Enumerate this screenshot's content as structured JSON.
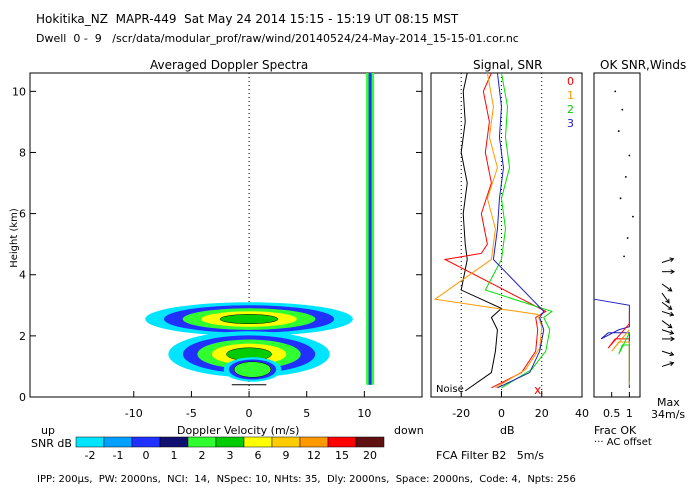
{
  "header": {
    "line1": "Hokitika_NZ  MAPR-449  Sat May 24 2014 15:15 - 15:19 UT 08:15 MST",
    "line2": "Dwell  0 -  9   /scr/data/modular_prof/raw/wind/20140524/24-May-2014_15-15-01.cor.nc"
  },
  "footer": {
    "params": "IPP: 200µs,  PW: 2000ns,  NCI:  14,  NSpec: 10, NHts: 35,  Dly: 2000ns,  Space: 2000ns,  Code: 4,  Npts: 256",
    "filter": "FCA Filter B2   5m/s"
  },
  "colors": {
    "cyan": "#00e5ff",
    "blue": "#2030ff",
    "navy": "#101070",
    "green": "#30ff30",
    "yellow": "#ffff00",
    "orange": "#ff9900",
    "red": "#ff0000",
    "magenta": "#c000c0"
  },
  "chart_data": [
    {
      "id": "spectra",
      "type": "heatmap",
      "title": "Averaged Doppler Spectra",
      "xlabel": "Doppler Velocity (m/s)",
      "ylabel": "Height (km)",
      "xlim": [
        -19,
        15
      ],
      "ylim": [
        0,
        10.6
      ],
      "xticks": [
        -10,
        -5,
        0,
        5,
        10
      ],
      "yticks": [
        0,
        2,
        4,
        6,
        8,
        10
      ],
      "left_label": "up",
      "right_label": "down",
      "colorbar": {
        "label": "SNR dB",
        "ticks": [
          "-2",
          "-1",
          "0",
          "1",
          "2",
          "3",
          "6",
          "9",
          "12",
          "15",
          "20"
        ],
        "colors": [
          "#00e5ff",
          "#00a0ff",
          "#2030ff",
          "#101070",
          "#30ff30",
          "#00cc00",
          "#ffff00",
          "#ffcc00",
          "#ff9900",
          "#ff0000",
          "#601010",
          "#300030",
          "#800080"
        ]
      },
      "blobs": [
        {
          "x": 0,
          "y": 2.55,
          "rx": 9,
          "ry": 0.55,
          "levels": 5
        },
        {
          "x": 0,
          "y": 1.4,
          "rx": 7,
          "ry": 0.75,
          "levels": 5
        },
        {
          "x": 0.3,
          "y": 0.9,
          "rx": 2.5,
          "ry": 0.4,
          "levels": 3
        }
      ],
      "noise_strip": {
        "x": 10.5,
        "from": 0.4,
        "to": 10.6
      }
    },
    {
      "id": "signal",
      "type": "line",
      "title": "Signal, SNR",
      "xlabel": "dB",
      "xlim": [
        -35,
        40
      ],
      "ylim": [
        0,
        10.6
      ],
      "xticks": [
        -20,
        0,
        20,
        40
      ],
      "noise_label": "Noise",
      "legend": [
        "0",
        "1",
        "2",
        "3"
      ],
      "legend_colors": [
        "#ff0000",
        "#ff9900",
        "#00e000",
        "#2020c0"
      ],
      "series": [
        {
          "name": "signal",
          "color": "#000000",
          "points": [
            [
              -18,
              0.2
            ],
            [
              -5,
              0.8
            ],
            [
              -3,
              1.5
            ],
            [
              -2,
              2.2
            ],
            [
              -5,
              2.6
            ],
            [
              0,
              2.9
            ],
            [
              -20,
              3.5
            ],
            [
              -17,
              4.5
            ],
            [
              -18,
              5
            ],
            [
              -19,
              6
            ],
            [
              -17,
              7
            ],
            [
              -20,
              8
            ],
            [
              -18,
              9
            ],
            [
              -19,
              10
            ],
            [
              -17,
              10.6
            ]
          ]
        },
        {
          "name": "0",
          "color": "#ff0000",
          "points": [
            [
              -5,
              0.3
            ],
            [
              10,
              0.8
            ],
            [
              17,
              1.5
            ],
            [
              18,
              2.2
            ],
            [
              17,
              2.6
            ],
            [
              22,
              2.8
            ],
            [
              -28,
              4.5
            ],
            [
              -10,
              4.7
            ],
            [
              -7,
              5
            ],
            [
              -10,
              6
            ],
            [
              -5,
              7
            ],
            [
              -8,
              8
            ],
            [
              -6,
              9
            ],
            [
              -9,
              10
            ],
            [
              -5,
              10.6
            ]
          ]
        },
        {
          "name": "1",
          "color": "#ff9900",
          "points": [
            [
              -3,
              0.3
            ],
            [
              12,
              0.9
            ],
            [
              19,
              1.6
            ],
            [
              20,
              2.3
            ],
            [
              18,
              2.7
            ],
            [
              -33,
              3.2
            ],
            [
              -5,
              4.5
            ],
            [
              -3,
              5.5
            ],
            [
              -7,
              6.5
            ],
            [
              -2,
              7.5
            ],
            [
              -6,
              8.5
            ],
            [
              -4,
              9.5
            ],
            [
              -7,
              10.6
            ]
          ]
        },
        {
          "name": "2",
          "color": "#00e000",
          "points": [
            [
              0,
              0.3
            ],
            [
              15,
              0.9
            ],
            [
              22,
              1.5
            ],
            [
              24,
              2.2
            ],
            [
              21,
              2.6
            ],
            [
              25,
              2.8
            ],
            [
              -8,
              3.5
            ],
            [
              0,
              4.5
            ],
            [
              2,
              5.5
            ],
            [
              0,
              6.5
            ],
            [
              4,
              7.5
            ],
            [
              2,
              8.5
            ],
            [
              3,
              9.5
            ],
            [
              0,
              10.6
            ]
          ]
        },
        {
          "name": "3",
          "color": "#2020c0",
          "points": [
            [
              -2,
              0.3
            ],
            [
              14,
              0.8
            ],
            [
              19,
              1.5
            ],
            [
              21,
              2.2
            ],
            [
              19,
              2.6
            ],
            [
              21,
              2.8
            ],
            [
              -4,
              4.5
            ],
            [
              -2,
              5.5
            ],
            [
              -1,
              6.5
            ],
            [
              1,
              7.5
            ],
            [
              -1,
              8.5
            ],
            [
              0,
              9.5
            ],
            [
              -2,
              10.6
            ]
          ]
        }
      ]
    },
    {
      "id": "snr-winds",
      "type": "line",
      "title": "OK SNR,Winds",
      "xlabel": "Frac OK",
      "sub_label": "··· AC offset",
      "xlim": [
        0,
        1.3
      ],
      "ylim": [
        0,
        10.6
      ],
      "xticks": [
        "0.5",
        "1"
      ],
      "xtick_values": [
        0.5,
        1
      ],
      "max_label": "Max",
      "max_speed": "34m/s",
      "frac_ok_series": [
        {
          "color": "#2020c0",
          "points": [
            [
              1,
              0.3
            ],
            [
              1,
              2.1
            ],
            [
              0.4,
              2.1
            ],
            [
              0.2,
              1.9
            ],
            [
              0.7,
              2.2
            ],
            [
              1,
              2.3
            ],
            [
              1,
              3.0
            ],
            [
              0,
              3.2
            ]
          ]
        },
        {
          "color": "#ff0000",
          "points": [
            [
              1,
              0.3
            ],
            [
              1,
              1.9
            ],
            [
              0.6,
              1.9
            ],
            [
              0.4,
              1.6
            ],
            [
              1,
              2.4
            ],
            [
              1,
              2.8
            ]
          ]
        },
        {
          "color": "#ff9900",
          "points": [
            [
              1,
              0.4
            ],
            [
              1,
              1.8
            ],
            [
              0.7,
              1.8
            ],
            [
              0.5,
              1.5
            ],
            [
              1,
              2.2
            ]
          ]
        },
        {
          "color": "#00e000",
          "points": [
            [
              1,
              0.5
            ],
            [
              1,
              1.7
            ],
            [
              0.8,
              1.7
            ],
            [
              0.7,
              1.4
            ],
            [
              1,
              2.1
            ]
          ]
        }
      ],
      "ac_offset_dots": [
        [
          0.6,
          10
        ],
        [
          0.8,
          9.4
        ],
        [
          0.7,
          8.7
        ],
        [
          1.0,
          7.9
        ],
        [
          0.9,
          7.2
        ],
        [
          0.75,
          6.5
        ],
        [
          1.1,
          5.9
        ],
        [
          0.95,
          5.2
        ],
        [
          0.85,
          4.6
        ]
      ],
      "winds": [
        [
          0.2,
          1
        ],
        [
          0.3,
          1.5
        ],
        [
          0.25,
          1.9
        ],
        [
          0.3,
          2.2
        ],
        [
          0.35,
          2.5
        ],
        [
          0.3,
          2.8
        ],
        [
          0.35,
          3.1
        ],
        [
          0.4,
          3.4
        ],
        [
          0.35,
          3.7
        ],
        [
          0.25,
          4.1
        ],
        [
          0.2,
          4.4
        ]
      ]
    }
  ]
}
